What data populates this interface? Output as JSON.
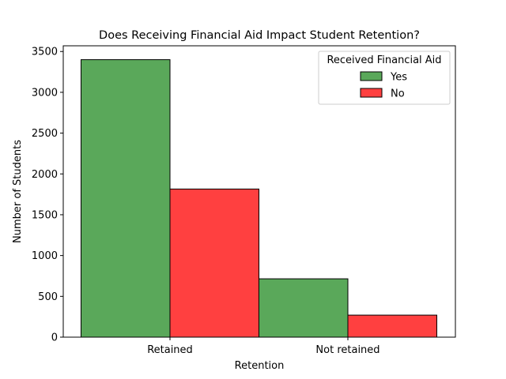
{
  "chart_data": {
    "type": "bar",
    "title": "Does Receiving Financial Aid Impact Student Retention?",
    "xlabel": "Retention",
    "ylabel": "Number of Students",
    "categories": [
      "Retained",
      "Not retained"
    ],
    "series": [
      {
        "name": "Yes",
        "values": [
          3400,
          715
        ],
        "color": "#5aa85a"
      },
      {
        "name": "No",
        "values": [
          1815,
          270
        ],
        "color": "#ff4040"
      }
    ],
    "ylim": [
      0,
      3570
    ],
    "yticks": [
      0,
      500,
      1000,
      1500,
      2000,
      2500,
      3000,
      3500
    ],
    "grid": false,
    "legend": {
      "title": "Received Financial Aid",
      "placement": "top-right"
    }
  }
}
